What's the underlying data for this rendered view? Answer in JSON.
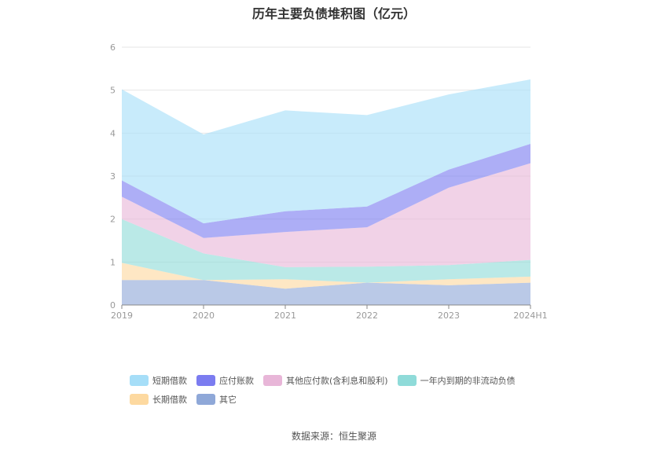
{
  "chart_data": {
    "type": "area",
    "stacked": true,
    "title": "历年主要负债堆积图（亿元）",
    "categories": [
      "2019",
      "2020",
      "2021",
      "2022",
      "2023",
      "2024H1"
    ],
    "ylim": [
      0,
      6
    ],
    "yticks": [
      0,
      1,
      2,
      3,
      4,
      5,
      6
    ],
    "grid": true,
    "legend_position": "bottom",
    "series": [
      {
        "name": "其它",
        "color": "#8fa8d8",
        "values": [
          0.58,
          0.58,
          0.38,
          0.52,
          0.46,
          0.52
        ]
      },
      {
        "name": "长期借款",
        "color": "#fdd9a0",
        "values": [
          0.4,
          0.0,
          0.22,
          0.0,
          0.14,
          0.14
        ]
      },
      {
        "name": "一年内到期的非流动负债",
        "color": "#8fdbd9",
        "values": [
          1.02,
          0.62,
          0.28,
          0.37,
          0.33,
          0.39
        ]
      },
      {
        "name": "其他应付款(含利息和股利)",
        "color": "#e8b6d8",
        "values": [
          0.52,
          0.36,
          0.82,
          0.92,
          1.8,
          2.25
        ]
      },
      {
        "name": "应付账款",
        "color": "#7b7cf0",
        "values": [
          0.38,
          0.34,
          0.48,
          0.48,
          0.42,
          0.45
        ]
      },
      {
        "name": "短期借款",
        "color": "#a6def8",
        "values": [
          2.12,
          2.07,
          2.35,
          2.13,
          1.75,
          1.5
        ]
      }
    ]
  },
  "source": "数据来源：恒生聚源"
}
